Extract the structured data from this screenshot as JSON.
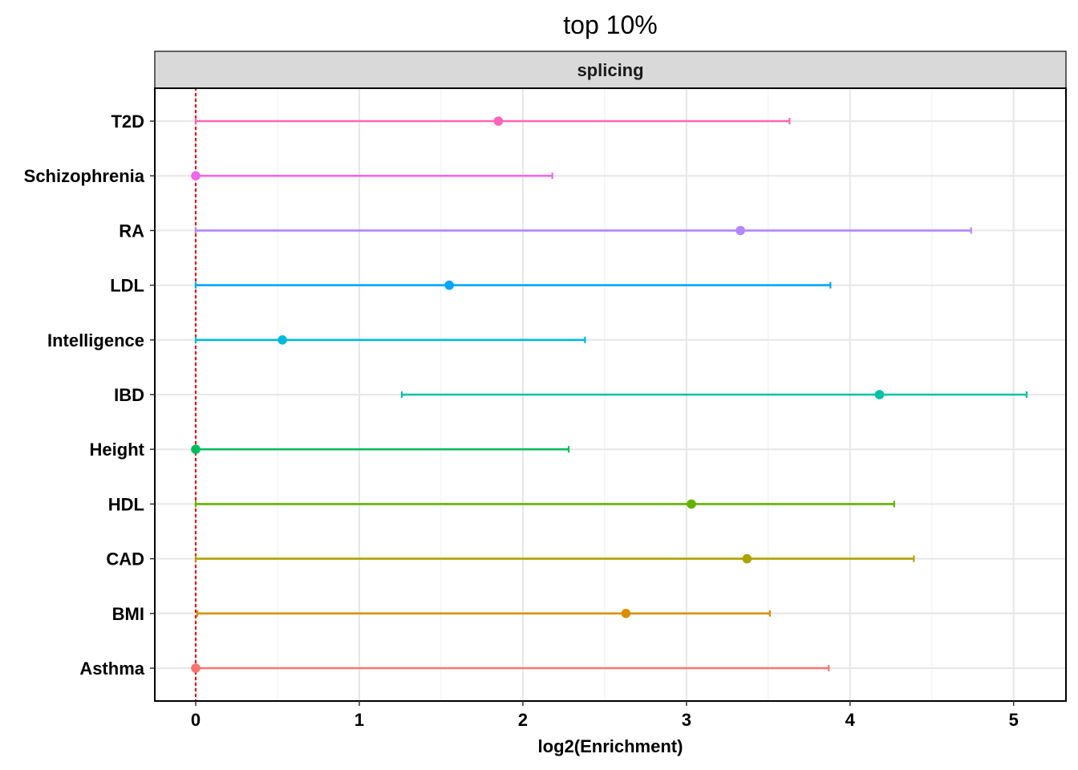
{
  "chart_data": {
    "type": "errorbar",
    "title": "top 10%",
    "facet_label": "splicing",
    "xlabel": "log2(Enrichment)",
    "ylabel": "",
    "xlim": [
      -0.25,
      5.32
    ],
    "xticks": [
      0,
      1,
      2,
      3,
      4,
      5
    ],
    "reference_line": {
      "x": 0,
      "color": "#e8000b",
      "style": "dotted"
    },
    "grid": true,
    "legend": "none",
    "categories": [
      "Asthma",
      "BMI",
      "CAD",
      "HDL",
      "Height",
      "IBD",
      "Intelligence",
      "LDL",
      "RA",
      "Schizophrenia",
      "T2D"
    ],
    "series": [
      {
        "category": "Asthma",
        "estimate": 0.0,
        "low": 0.0,
        "high": 3.87,
        "color": "#F8766D"
      },
      {
        "category": "BMI",
        "estimate": 2.63,
        "low": 0.01,
        "high": 3.51,
        "color": "#DB8E00"
      },
      {
        "category": "CAD",
        "estimate": 3.37,
        "low": 0.0,
        "high": 4.39,
        "color": "#AEA200"
      },
      {
        "category": "HDL",
        "estimate": 3.03,
        "low": 0.0,
        "high": 4.27,
        "color": "#64B200"
      },
      {
        "category": "Height",
        "estimate": 0.0,
        "low": 0.0,
        "high": 2.28,
        "color": "#00BD5C"
      },
      {
        "category": "IBD",
        "estimate": 4.18,
        "low": 1.26,
        "high": 5.08,
        "color": "#00C1A7"
      },
      {
        "category": "Intelligence",
        "estimate": 0.53,
        "low": 0.0,
        "high": 2.38,
        "color": "#00BADE"
      },
      {
        "category": "LDL",
        "estimate": 1.55,
        "low": 0.0,
        "high": 3.88,
        "color": "#00A6FF"
      },
      {
        "category": "RA",
        "estimate": 3.33,
        "low": 0.0,
        "high": 4.74,
        "color": "#B385FF"
      },
      {
        "category": "Schizophrenia",
        "estimate": 0.0,
        "low": 0.0,
        "high": 2.18,
        "color": "#EF67EB"
      },
      {
        "category": "T2D",
        "estimate": 1.85,
        "low": 0.0,
        "high": 3.63,
        "color": "#FF63B6"
      }
    ]
  }
}
